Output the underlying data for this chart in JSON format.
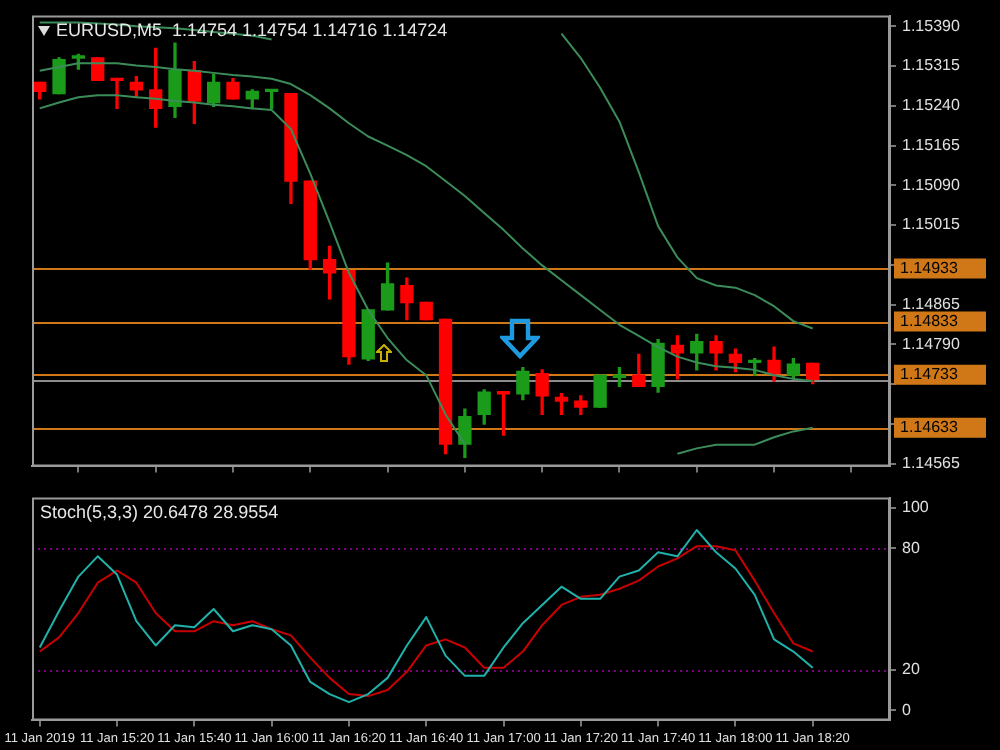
{
  "chart_data": [
    {
      "type": "candlestick",
      "title": "EURUSD,M5  1.14754 1.14754 1.14716 1.14724",
      "x": [
        "2019-01-11T15:00",
        "2019-01-11T15:05",
        "2019-01-11T15:10",
        "2019-01-11T15:15",
        "2019-01-11T15:20",
        "2019-01-11T15:25",
        "2019-01-11T15:30",
        "2019-01-11T15:35",
        "2019-01-11T15:40",
        "2019-01-11T15:45",
        "2019-01-11T15:50",
        "2019-01-11T15:55",
        "2019-01-11T16:00",
        "2019-01-11T16:05",
        "2019-01-11T16:10",
        "2019-01-11T16:15",
        "2019-01-11T16:20",
        "2019-01-11T16:25",
        "2019-01-11T16:30",
        "2019-01-11T16:35",
        "2019-01-11T16:40",
        "2019-01-11T16:45",
        "2019-01-11T16:50",
        "2019-01-11T16:55",
        "2019-01-11T17:00",
        "2019-01-11T17:05",
        "2019-01-11T17:10",
        "2019-01-11T17:15",
        "2019-01-11T17:20",
        "2019-01-11T17:25",
        "2019-01-11T17:30",
        "2019-01-11T17:35",
        "2019-01-11T17:40",
        "2019-01-11T17:45",
        "2019-01-11T17:50",
        "2019-01-11T17:55",
        "2019-01-11T18:00",
        "2019-01-11T18:05",
        "2019-01-11T18:10",
        "2019-01-11T18:15",
        "2019-01-11T18:20"
      ],
      "ohlc": [
        [
          1.15284,
          1.15284,
          1.15253,
          1.15267
        ],
        [
          1.15263,
          1.1533,
          1.15263,
          1.15327
        ],
        [
          1.1533,
          1.15337,
          1.15309,
          1.15334
        ],
        [
          1.1533,
          1.1533,
          1.15288,
          1.15288
        ],
        [
          1.15291,
          1.15291,
          1.15235,
          1.15288
        ],
        [
          1.15284,
          1.15295,
          1.15256,
          1.1527
        ],
        [
          1.1527,
          1.15348,
          1.152,
          1.15235
        ],
        [
          1.15239,
          1.15358,
          1.15218,
          1.15306
        ],
        [
          1.15306,
          1.15323,
          1.15207,
          1.15249
        ],
        [
          1.15246,
          1.15299,
          1.15239,
          1.15284
        ],
        [
          1.15284,
          1.15291,
          1.15253,
          1.15253
        ],
        [
          1.15253,
          1.1527,
          1.15235,
          1.15267
        ],
        [
          1.15267,
          1.1527,
          1.15235,
          1.1527
        ],
        [
          1.15263,
          1.15263,
          1.15056,
          1.15098
        ],
        [
          1.15098,
          1.15098,
          1.14932,
          1.1495
        ],
        [
          1.1495,
          1.14975,
          1.14876,
          1.14925
        ],
        [
          1.14929,
          1.14929,
          1.14753,
          1.14767
        ],
        [
          1.14763,
          1.14855,
          1.1476,
          1.14855
        ],
        [
          1.14855,
          1.14943,
          1.14855,
          1.14904
        ],
        [
          1.14901,
          1.14915,
          1.14837,
          1.14869
        ],
        [
          1.14869,
          1.14869,
          1.14837,
          1.14837
        ],
        [
          1.14837,
          1.14837,
          1.14584,
          1.14602
        ],
        [
          1.14602,
          1.14668,
          1.14577,
          1.14654
        ],
        [
          1.14658,
          1.14704,
          1.1464,
          1.147
        ],
        [
          1.147,
          1.147,
          1.14619,
          1.14697
        ],
        [
          1.14697,
          1.14746,
          1.14686,
          1.14739
        ],
        [
          1.14735,
          1.14742,
          1.14658,
          1.14693
        ],
        [
          1.1469,
          1.14697,
          1.14658,
          1.14683
        ],
        [
          1.14683,
          1.14693,
          1.14658,
          1.14672
        ],
        [
          1.14672,
          1.14732,
          1.14672,
          1.14732
        ],
        [
          1.14728,
          1.14746,
          1.14711,
          1.14732
        ],
        [
          1.14732,
          1.14771,
          1.14711,
          1.14711
        ],
        [
          1.14711,
          1.14799,
          1.147,
          1.14792
        ],
        [
          1.14788,
          1.14806,
          1.14725,
          1.14774
        ],
        [
          1.14774,
          1.14809,
          1.14742,
          1.14795
        ],
        [
          1.14795,
          1.14806,
          1.14742,
          1.14774
        ],
        [
          1.14771,
          1.14781,
          1.14739,
          1.14756
        ],
        [
          1.14756,
          1.14763,
          1.14732,
          1.1476
        ],
        [
          1.1476,
          1.14785,
          1.14721,
          1.14735
        ],
        [
          1.14732,
          1.14763,
          1.14725,
          1.14753
        ],
        [
          1.14754,
          1.14754,
          1.14716,
          1.14724
        ]
      ],
      "colors": [
        "#ff0000",
        "#1a9b1a",
        "#1a9b1a",
        "#ff0000",
        "#ff0000",
        "#ff0000",
        "#ff0000",
        "#1a9b1a",
        "#ff0000",
        "#1a9b1a",
        "#ff0000",
        "#1a9b1a",
        "#1a9b1a",
        "#ff0000",
        "#ff0000",
        "#ff0000",
        "#ff0000",
        "#1a9b1a",
        "#1a9b1a",
        "#ff0000",
        "#ff0000",
        "#ff0000",
        "#1a9b1a",
        "#1a9b1a",
        "#ff0000",
        "#1a9b1a",
        "#ff0000",
        "#ff0000",
        "#ff0000",
        "#1a9b1a",
        "#1a9b1a",
        "#ff0000",
        "#1a9b1a",
        "#ff0000",
        "#1a9b1a",
        "#ff0000",
        "#ff0000",
        "#1a9b1a",
        "#ff0000",
        "#1a9b1a",
        "#ff0000"
      ],
      "series": [
        {
          "type": "line",
          "color": "#3c8c5a",
          "values": [
            1.15397,
            1.15397,
            1.15397,
            1.15395,
            1.15393,
            1.1539,
            1.15388,
            1.15386,
            1.15383,
            1.15379,
            1.15376,
            1.15372,
            1.15365,
            null,
            null,
            null,
            null,
            null,
            null,
            null,
            null,
            null,
            null,
            null,
            null,
            null,
            null,
            1.15376,
            1.1533,
            1.15274,
            1.1521,
            1.15115,
            1.15013,
            1.14954,
            1.14915,
            1.14901,
            1.14897,
            1.14883,
            1.14862,
            1.14834,
            1.1482
          ]
        },
        {
          "type": "line",
          "color": "#3c8c5a",
          "values": [
            1.15306,
            1.15313,
            1.1532,
            1.1532,
            1.1532,
            1.15316,
            1.15313,
            1.15309,
            1.15306,
            1.15302,
            1.15298,
            1.15295,
            1.15291,
            1.15281,
            1.1526,
            1.15235,
            1.15207,
            1.15182,
            1.15165,
            1.15147,
            1.15126,
            1.15098,
            1.1507,
            1.15038,
            1.15006,
            1.14971,
            1.14939,
            1.14911,
            1.14883,
            1.14855,
            1.14827,
            1.14806,
            1.14785,
            1.14767,
            1.14756,
            1.14749,
            1.14746,
            1.14742,
            1.14732,
            1.14725,
            1.14721
          ]
        },
        {
          "type": "line",
          "color": "#3c8c5a",
          "values": [
            1.15235,
            1.15246,
            1.15256,
            1.1526,
            1.1526,
            1.15256,
            1.15253,
            1.15249,
            1.15246,
            1.15242,
            1.15239,
            1.15235,
            1.15232,
            1.15196,
            1.15112,
            1.1502,
            1.14925,
            1.14855,
            1.14802,
            1.1476,
            1.14732,
            1.14658,
            1.14602,
            null,
            null,
            null,
            null,
            null,
            null,
            null,
            null,
            null,
            null,
            1.14584,
            1.14594,
            1.14601,
            1.14601,
            1.14601,
            1.14615,
            1.14626,
            1.14633
          ]
        }
      ],
      "marker": "none",
      "xlim": [
        "2019-01-11T14:58",
        "2019-01-11T18:40"
      ],
      "xticks": [
        {
          "value": "2019-01-11T15:00",
          "label": null
        },
        {
          "value": "2019-01-11T15:20",
          "label": null
        },
        {
          "value": "2019-01-11T15:40",
          "label": null
        },
        {
          "value": "2019-01-11T16:00",
          "label": null
        },
        {
          "value": "2019-01-11T16:20",
          "label": null
        },
        {
          "value": "2019-01-11T16:40",
          "label": null
        },
        {
          "value": "2019-01-11T17:00",
          "label": null
        },
        {
          "value": "2019-01-11T17:20",
          "label": null
        },
        {
          "value": "2019-01-11T17:40",
          "label": null
        },
        {
          "value": "2019-01-11T18:00",
          "label": null
        },
        {
          "value": "2019-01-11T18:20",
          "label": null
        }
      ],
      "ylim": [
        1.1456,
        1.1541
      ],
      "yticks": [
        {
          "value": 1.14565,
          "label": "1.14565"
        },
        {
          "value": 1.1464,
          "label": null
        },
        {
          "value": 1.14715,
          "label": null
        },
        {
          "value": 1.1479,
          "label": "1.14790"
        },
        {
          "value": 1.14865,
          "label": "1.14865"
        },
        {
          "value": 1.1494,
          "label": null
        },
        {
          "value": 1.15015,
          "label": "1.15015"
        },
        {
          "value": 1.1509,
          "label": "1.15090"
        },
        {
          "value": 1.15165,
          "label": "1.15165"
        },
        {
          "value": 1.1524,
          "label": "1.15240"
        },
        {
          "value": 1.15315,
          "label": "1.15315"
        },
        {
          "value": 1.1539,
          "label": "1.15390"
        }
      ],
      "tick_labels": "y",
      "ref_lines": [
        {
          "axis": "y",
          "value": 1.14933,
          "label": "1.14933",
          "color": "#d07818"
        },
        {
          "axis": "y",
          "value": 1.14833,
          "label": "1.14833",
          "color": "#d07818"
        },
        {
          "axis": "y",
          "value": 1.14733,
          "label": "1.14733",
          "color": "#d07818"
        },
        {
          "axis": "y",
          "value": 1.14633,
          "label": "1.14633",
          "color": "#d07818"
        },
        {
          "axis": "y",
          "value": 1.14724,
          "color": "#8c8c8c"
        }
      ]
    },
    {
      "type": "line",
      "title": "Stoch(5,3,3) 20.6478 28.9554",
      "x": [
        "2019-01-11T15:00",
        "2019-01-11T15:05",
        "2019-01-11T15:10",
        "2019-01-11T15:15",
        "2019-01-11T15:20",
        "2019-01-11T15:25",
        "2019-01-11T15:30",
        "2019-01-11T15:35",
        "2019-01-11T15:40",
        "2019-01-11T15:45",
        "2019-01-11T15:50",
        "2019-01-11T15:55",
        "2019-01-11T16:00",
        "2019-01-11T16:05",
        "2019-01-11T16:10",
        "2019-01-11T16:15",
        "2019-01-11T16:20",
        "2019-01-11T16:25",
        "2019-01-11T16:30",
        "2019-01-11T16:35",
        "2019-01-11T16:40",
        "2019-01-11T16:45",
        "2019-01-11T16:50",
        "2019-01-11T16:55",
        "2019-01-11T17:00",
        "2019-01-11T17:05",
        "2019-01-11T17:10",
        "2019-01-11T17:15",
        "2019-01-11T17:20",
        "2019-01-11T17:25",
        "2019-01-11T17:30",
        "2019-01-11T17:35",
        "2019-01-11T17:40",
        "2019-01-11T17:45",
        "2019-01-11T17:50",
        "2019-01-11T17:55",
        "2019-01-11T18:00",
        "2019-01-11T18:05",
        "2019-01-11T18:10",
        "2019-01-11T18:15",
        "2019-01-11T18:20"
      ],
      "series": [
        {
          "color": "#20b2aa",
          "values": [
            31,
            49,
            66,
            76,
            67,
            44,
            32,
            42,
            41,
            50,
            39,
            42,
            40,
            32,
            14,
            8,
            4,
            8,
            16,
            32,
            46,
            27,
            17,
            17,
            31,
            43,
            52,
            61,
            55,
            55,
            66,
            69,
            78,
            76,
            89,
            78,
            70,
            57,
            35,
            29,
            21
          ]
        },
        {
          "color": "#c80000",
          "values": [
            29,
            36,
            48,
            63,
            69,
            63,
            48,
            39,
            39,
            44,
            42,
            44,
            40,
            37,
            26,
            16,
            8,
            7,
            10,
            19,
            32,
            35,
            31,
            21,
            21,
            29,
            42,
            52,
            56,
            57,
            60,
            64,
            71,
            75,
            81,
            81,
            79,
            64,
            48,
            33,
            29
          ]
        }
      ],
      "marker": "none",
      "xlim": [
        "2019-01-11T14:58",
        "2019-01-11T18:40"
      ],
      "xticks": [
        {
          "value": "2019-01-11T15:00",
          "label": "11 Jan 2019"
        },
        {
          "value": "2019-01-11T15:20",
          "label": "11 Jan 15:20"
        },
        {
          "value": "2019-01-11T15:40",
          "label": "11 Jan 15:40"
        },
        {
          "value": "2019-01-11T16:00",
          "label": "11 Jan 16:00"
        },
        {
          "value": "2019-01-11T16:20",
          "label": "11 Jan 16:20"
        },
        {
          "value": "2019-01-11T16:40",
          "label": "11 Jan 16:40"
        },
        {
          "value": "2019-01-11T17:00",
          "label": "11 Jan 17:00"
        },
        {
          "value": "2019-01-11T17:20",
          "label": "11 Jan 17:20"
        },
        {
          "value": "2019-01-11T17:40",
          "label": "11 Jan 17:40"
        },
        {
          "value": "2019-01-11T18:00",
          "label": "11 Jan 18:00"
        },
        {
          "value": "2019-01-11T18:20",
          "label": "11 Jan 18:20"
        }
      ],
      "ylim": [
        -5,
        105
      ],
      "yticks": [
        0,
        20,
        80,
        100
      ],
      "ref_lines": [
        {
          "axis": "y",
          "value": 80,
          "color": "#800080",
          "line_style": "dotted"
        },
        {
          "axis": "y",
          "value": 20,
          "color": "#800080",
          "line_style": "dotted"
        }
      ]
    }
  ]
}
